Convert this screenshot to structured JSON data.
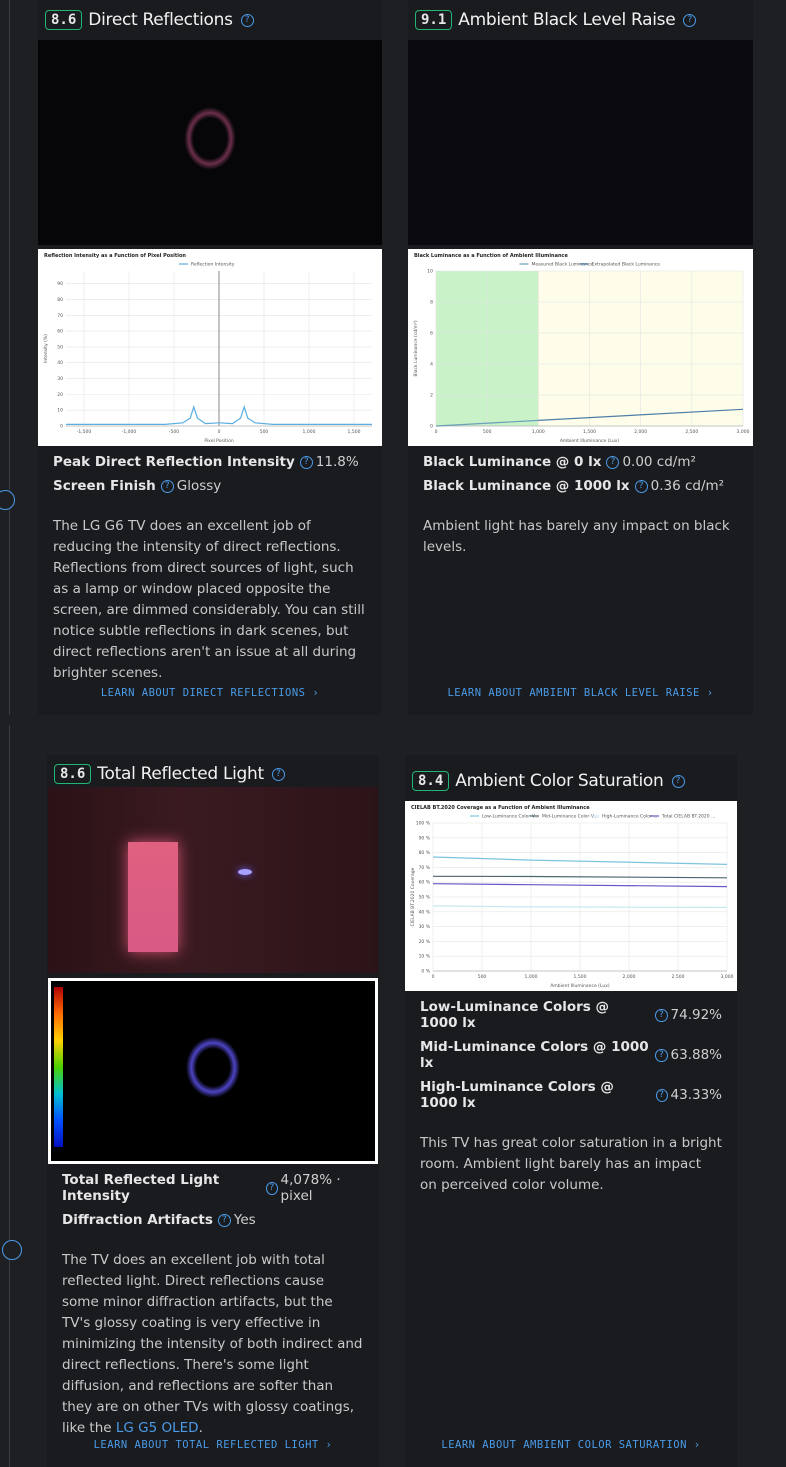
{
  "cards": [
    {
      "score": "8.6",
      "title": "Direct Reflections",
      "image": "reflect",
      "chart": {
        "type": "line",
        "title": "Reflection Intensity as a Function of Pixel Position",
        "x_label": "Pixel Position",
        "y_label": "Intensity (%)",
        "zero_line": true,
        "xlim": [
          -1700,
          1700
        ],
        "ylim": [
          0,
          98
        ],
        "xticks": [
          {
            "value": -1500,
            "label": "-1,500"
          },
          {
            "value": -1000,
            "label": "-1,000"
          },
          -500,
          0,
          500,
          {
            "value": 1000,
            "label": "1,000"
          },
          {
            "value": 1500,
            "label": "1,500"
          }
        ],
        "yticks": [
          0,
          10,
          20,
          30,
          40,
          50,
          60,
          70,
          80,
          90
        ],
        "series": [
          {
            "name": "Reflection Intensity",
            "color": "#5aaee0",
            "x": [
              -1700,
              -600,
              -400,
              -320,
              -280,
              -240,
              -150,
              0,
              150,
              240,
              280,
              320,
              400,
              600,
              1700
            ],
            "values": [
              1,
              1,
              2,
              5,
              12,
              5,
              1.5,
              2,
              1.5,
              5,
              12,
              5,
              2,
              1,
              1
            ]
          }
        ]
      },
      "metrics": [
        {
          "label": "Peak Direct Reflection Intensity",
          "value": "11.8%"
        },
        {
          "label": "Screen Finish",
          "value": "Glossy"
        }
      ],
      "description": {
        "text": "The LG G6 TV does an excellent job of reducing the intensity of direct reflections. Reflections from direct sources of light, such as a lamp or window placed opposite the screen, are dimmed considerably. You can still notice subtle reflections in dark scenes, but direct reflections aren't an issue at all during brighter scenes."
      },
      "link": "LEARN ABOUT DIRECT REFLECTIONS"
    },
    {
      "score": "9.1",
      "title": "Ambient Black Level Raise",
      "image": "dark",
      "chart": {
        "type": "line",
        "title": "Black Luminance as a Function of Ambient Illuminance",
        "x_label": "Ambient Illuminance (Lux)",
        "y_label": "Black Luminance (cd/m²)",
        "shade_colors": [
          "#c9f2c9",
          "#fdfde9"
        ],
        "xlim": [
          0,
          3000
        ],
        "ylim": [
          0,
          10
        ],
        "xticks": [
          0,
          500,
          {
            "value": 1000,
            "label": "1,000"
          },
          {
            "value": 1500,
            "label": "1,500"
          },
          {
            "value": 2000,
            "label": "2,000"
          },
          {
            "value": 2500,
            "label": "2,500"
          },
          {
            "value": 3000,
            "label": "3,000"
          }
        ],
        "yticks": [
          0,
          2,
          4,
          6,
          8,
          10
        ],
        "series": [
          {
            "name": "Measured Black Luminance",
            "color": "#6aa0b8",
            "x": [
              0,
              1000
            ],
            "values": [
              0,
              0.36
            ]
          },
          {
            "name": "Extrapolated Black Luminance",
            "color": "#4f7ea8",
            "x": [
              1000,
              3000
            ],
            "values": [
              0.36,
              1.08
            ]
          }
        ]
      },
      "metrics": [
        {
          "label": "Black Luminance @ 0 lx",
          "value": "0.00 cd/m²"
        },
        {
          "label": "Black Luminance @ 1000 lx",
          "value": "0.36 cd/m²"
        }
      ],
      "description": {
        "text": "Ambient light has barely any impact on black levels."
      },
      "link": "LEARN ABOUT AMBIENT BLACK LEVEL RAISE"
    },
    {
      "score": "8.6",
      "title": "Total Reflected Light",
      "image": "room",
      "metrics": [
        {
          "label": "Total Reflected Light Intensity",
          "value": "4,078% · pixel"
        },
        {
          "label": "Diffraction Artifacts",
          "value": "Yes"
        }
      ],
      "description": {
        "text": "The TV does an excellent job with total reflected light. Direct reflections cause some minor diffraction artifacts, but the TV's glossy coating is very effective in minimizing the intensity of both indirect and direct reflections. There's some light diffusion, and reflections are softer than they are on other TVs with glossy coatings, like the ",
        "link": "LG G5 OLED",
        "end": "."
      },
      "link": "LEARN ABOUT TOTAL REFLECTED LIGHT"
    },
    {
      "score": "8.4",
      "title": "Ambient Color Saturation",
      "chart": {
        "type": "line",
        "title": "CIELAB BT.2020 Coverage as a Function of Ambient Illuminance",
        "x_label": "Ambient Illuminance (Lux)",
        "y_label": "CIELAB BT.2020 Coverage",
        "xlim": [
          0,
          3000
        ],
        "ylim": [
          0,
          100
        ],
        "xticks": [
          0,
          500,
          {
            "value": 1000,
            "label": "1,000"
          },
          {
            "value": 1500,
            "label": "1,500"
          },
          {
            "value": 2000,
            "label": "2,000"
          },
          {
            "value": 2500,
            "label": "2,500"
          },
          {
            "value": 3000,
            "label": "3,000"
          }
        ],
        "yticks": [
          {
            "value": 0,
            "label": "0 %"
          },
          {
            "value": 10,
            "label": "10 %"
          },
          {
            "value": 20,
            "label": "20 %"
          },
          {
            "value": 30,
            "label": "30 %"
          },
          {
            "value": 40,
            "label": "40 %"
          },
          {
            "value": 50,
            "label": "50 %"
          },
          {
            "value": 60,
            "label": "60 %"
          },
          {
            "value": 70,
            "label": "70 %"
          },
          {
            "value": 80,
            "label": "80 %"
          },
          {
            "value": 90,
            "label": "90 %"
          },
          {
            "value": 100,
            "label": "100 %"
          }
        ],
        "series": [
          {
            "name": "Low-Luminance Color V...",
            "color": "#7ec3de",
            "x": [
              0,
              1000,
              3000
            ],
            "values": [
              77,
              74.92,
              72
            ]
          },
          {
            "name": "Mid-Luminance Color V...",
            "color": "#4d6570",
            "x": [
              0,
              1000,
              3000
            ],
            "values": [
              64,
              63.88,
              63
            ]
          },
          {
            "name": "High-Luminance Color ...",
            "color": "#c6e8f0",
            "x": [
              0,
              1000,
              3000
            ],
            "values": [
              44,
              43.33,
              43
            ]
          },
          {
            "name": "Total CIELAB BT.2020 ...",
            "color": "#6a56c8",
            "x": [
              0,
              1000,
              3000
            ],
            "values": [
              59,
              58.3,
              57
            ]
          }
        ]
      },
      "metrics": [
        {
          "label": "Low-Luminance Colors @ 1000 lx",
          "value": "74.92%"
        },
        {
          "label": "Mid-Luminance Colors @ 1000 lx",
          "value": "63.88%"
        },
        {
          "label": "High-Luminance Colors @ 1000 lx",
          "value": "43.33%"
        }
      ],
      "description": {
        "text": "This TV has great color saturation in a bright room. Ambient light barely has an impact on perceived color volume."
      },
      "link": "LEARN ABOUT AMBIENT COLOR SATURATION"
    }
  ]
}
